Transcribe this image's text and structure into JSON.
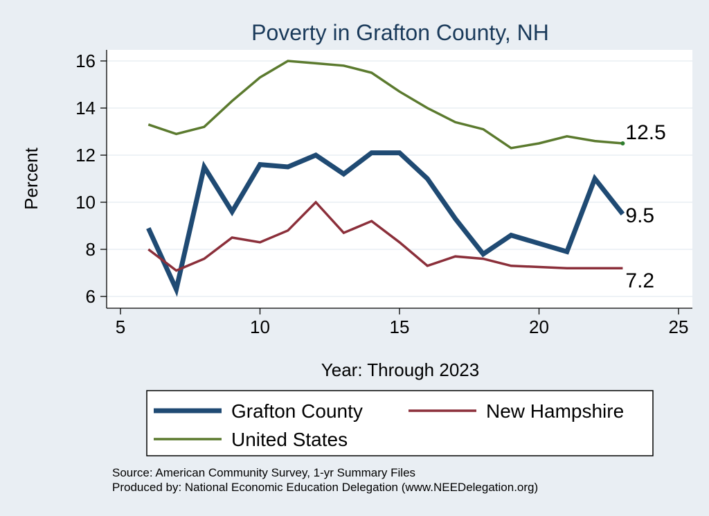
{
  "chart_data": {
    "type": "line",
    "title": "Poverty in Grafton County, NH",
    "xlabel": "Year: Through 2023",
    "ylabel": "Percent",
    "xlim": [
      5,
      25
    ],
    "ylim": [
      6,
      16
    ],
    "xticks": [
      5,
      10,
      15,
      20,
      25
    ],
    "yticks": [
      6,
      8,
      10,
      12,
      14,
      16
    ],
    "grid": true,
    "legend_position": "bottom",
    "series": [
      {
        "name": "Grafton County",
        "color": "#1f4a73",
        "points": [
          [
            6,
            8.9
          ],
          [
            7,
            6.3
          ],
          [
            8,
            11.5
          ],
          [
            9,
            9.6
          ],
          [
            10,
            11.6
          ],
          [
            11,
            11.5
          ],
          [
            12,
            12.0
          ],
          [
            13,
            11.2
          ],
          [
            14,
            12.1
          ],
          [
            15,
            12.1
          ],
          [
            16,
            11.0
          ],
          [
            17,
            9.3
          ],
          [
            18,
            7.8
          ],
          [
            19,
            8.6
          ],
          [
            21,
            7.9
          ],
          [
            22,
            11.0
          ],
          [
            23,
            9.5
          ]
        ],
        "end_label": "9.5"
      },
      {
        "name": "New Hampshire",
        "color": "#8b2f3a",
        "points": [
          [
            6,
            8.0
          ],
          [
            7,
            7.1
          ],
          [
            8,
            7.6
          ],
          [
            9,
            8.5
          ],
          [
            10,
            8.3
          ],
          [
            11,
            8.8
          ],
          [
            12,
            10.0
          ],
          [
            13,
            8.7
          ],
          [
            14,
            9.2
          ],
          [
            15,
            8.3
          ],
          [
            16,
            7.3
          ],
          [
            17,
            7.7
          ],
          [
            18,
            7.6
          ],
          [
            19,
            7.3
          ],
          [
            21,
            7.2
          ],
          [
            23,
            7.2
          ]
        ],
        "end_label": "7.2"
      },
      {
        "name": "United States",
        "color": "#5b7a2e",
        "points": [
          [
            6,
            13.3
          ],
          [
            7,
            12.9
          ],
          [
            8,
            13.2
          ],
          [
            9,
            14.3
          ],
          [
            10,
            15.3
          ],
          [
            11,
            16.0
          ],
          [
            12,
            15.9
          ],
          [
            13,
            15.8
          ],
          [
            14,
            15.5
          ],
          [
            15,
            14.7
          ],
          [
            16,
            14.0
          ],
          [
            17,
            13.4
          ],
          [
            18,
            13.1
          ],
          [
            19,
            12.3
          ],
          [
            20,
            12.5
          ],
          [
            21,
            12.8
          ],
          [
            22,
            12.6
          ],
          [
            23,
            12.5
          ]
        ],
        "end_label": "12.5"
      }
    ],
    "notes": [
      "Source: American Community Survey, 1-yr Summary Files",
      "Produced by: National Economic Education Delegation (www.NEEDelegation.org)"
    ]
  }
}
